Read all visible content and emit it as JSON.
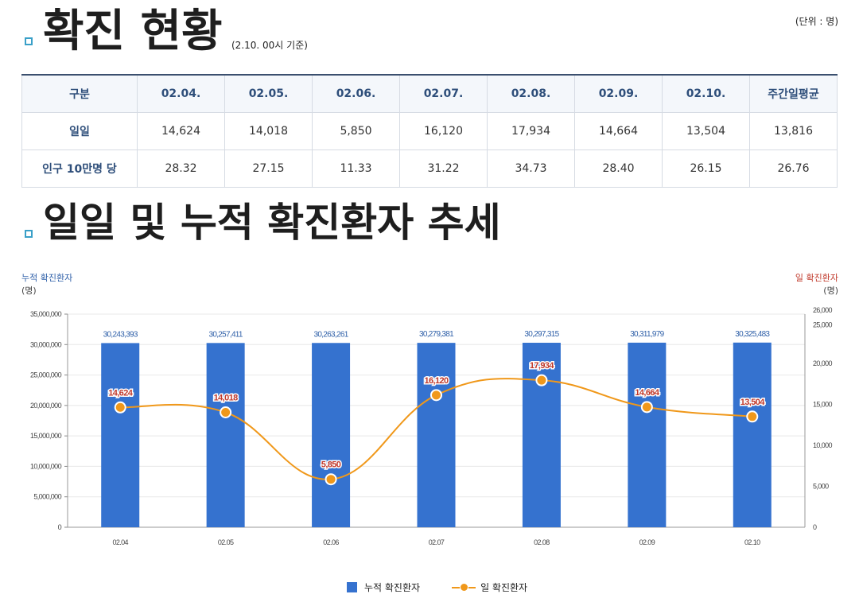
{
  "header": {
    "title1": "확진 현황",
    "subtitle1": "(2.10. 00시 기준)",
    "unit": "(단위 : 명)",
    "title2": "일일 및 누적 확진환자 추세"
  },
  "table": {
    "headers": [
      "구분",
      "02.04.",
      "02.05.",
      "02.06.",
      "02.07.",
      "02.08.",
      "02.09.",
      "02.10.",
      "주간일평균"
    ],
    "rows": [
      {
        "label": "일일",
        "values": [
          "14,624",
          "14,018",
          "5,850",
          "16,120",
          "17,934",
          "14,664",
          "13,504",
          "13,816"
        ]
      },
      {
        "label": "인구 10만명 당",
        "values": [
          "28.32",
          "27.15",
          "11.33",
          "31.22",
          "34.73",
          "28.40",
          "26.15",
          "26.76"
        ]
      }
    ]
  },
  "chart_data": {
    "type": "bar",
    "categories": [
      "02.04",
      "02.05",
      "02.06",
      "02.07",
      "02.08",
      "02.09",
      "02.10"
    ],
    "left_axis": {
      "title": "누적 확진환자",
      "unit": "(명)",
      "range": [
        0,
        35000000
      ],
      "ticks": [
        "0",
        "5,000,000",
        "10,000,000",
        "15,000,000",
        "20,000,000",
        "25,000,000",
        "30,000,000",
        "35,000,000"
      ],
      "tick_values": [
        0,
        5000000,
        10000000,
        15000000,
        20000000,
        25000000,
        30000000,
        35000000
      ]
    },
    "right_axis": {
      "title": "일 확진환자",
      "unit": "(명)",
      "range": [
        0,
        26000
      ],
      "ticks": [
        "0",
        "5,000",
        "10,000",
        "15,000",
        "20,000",
        "25,000",
        "26,000"
      ],
      "tick_values": [
        0,
        5000,
        10000,
        15000,
        20000,
        25000,
        26000
      ]
    },
    "series": [
      {
        "name": "누적 확진환자",
        "type": "bar",
        "axis": "left",
        "color": "#3572cf",
        "values": [
          30243393,
          30257411,
          30263261,
          30279381,
          30297315,
          30311979,
          30325483
        ],
        "labels": [
          "30,243,393",
          "30,257,411",
          "30,263,261",
          "30,279,381",
          "30,297,315",
          "30,311,979",
          "30,325,483"
        ]
      },
      {
        "name": "일 확진환자",
        "type": "line",
        "axis": "right",
        "color": "#f0981a",
        "values": [
          14624,
          14018,
          5850,
          16120,
          17934,
          14664,
          13504
        ],
        "labels": [
          "14,624",
          "14,018",
          "5,850",
          "16,120",
          "17,934",
          "14,664",
          "13,504"
        ]
      }
    ],
    "grid": true,
    "legend_position": "bottom"
  },
  "colors": {
    "accent": "#3aa0c8",
    "bar": "#3572cf",
    "line": "#f0981a",
    "line_label": "#c0392b",
    "left_axis_title": "#2e5fa8",
    "right_axis_title": "#c0392b"
  }
}
